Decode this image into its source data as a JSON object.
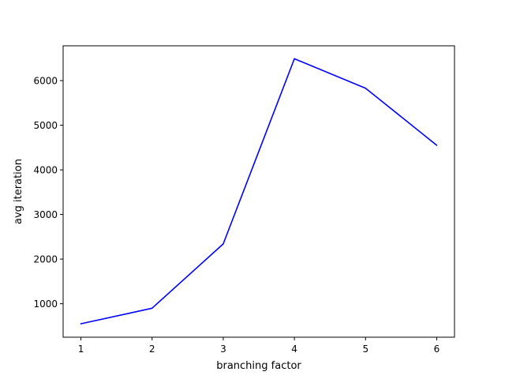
{
  "chart_data": {
    "type": "line",
    "title": "",
    "xlabel": "branching factor",
    "ylabel": "avg iteration",
    "xlim": [
      0.75,
      6.25
    ],
    "ylim": [
      250,
      6780
    ],
    "x_ticks": [
      1,
      2,
      3,
      4,
      5,
      6
    ],
    "y_ticks": [
      1000,
      2000,
      3000,
      4000,
      5000,
      6000
    ],
    "grid": false,
    "legend": "none",
    "series": [
      {
        "color": "#0000ff",
        "x": [
          1,
          2,
          3,
          4,
          5,
          6
        ],
        "y": [
          550,
          900,
          2340,
          6490,
          5830,
          4550
        ]
      }
    ]
  }
}
